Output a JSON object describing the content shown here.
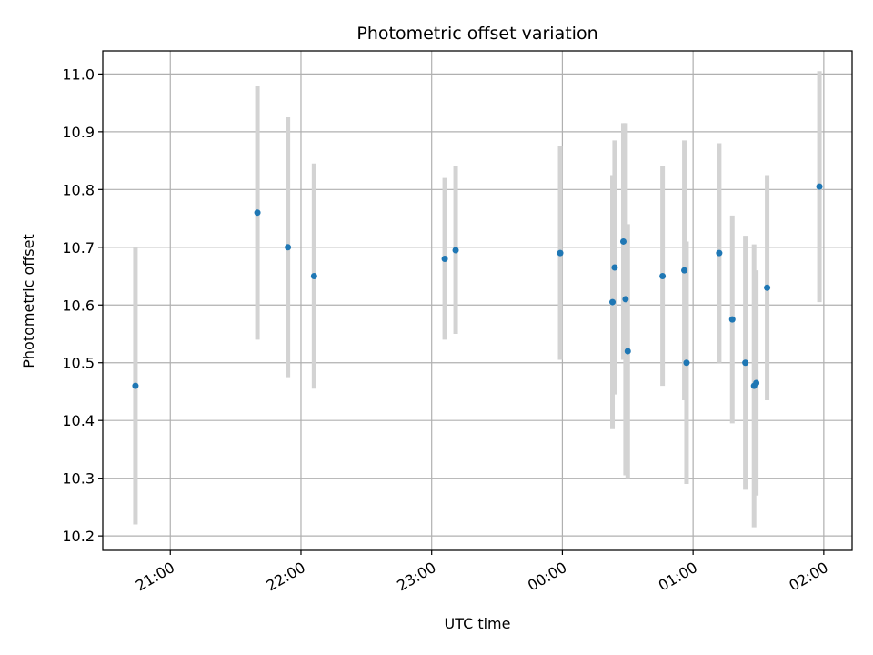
{
  "chart_data": {
    "type": "scatter",
    "title": "Photometric offset variation",
    "xlabel": "UTC time",
    "ylabel": "Photometric offset",
    "x_unit": "hours of UTC night",
    "xlim": [
      "20:29",
      "02:13"
    ],
    "ylim": [
      10.175,
      11.04
    ],
    "grid": true,
    "x_ticks": [
      {
        "t": "21:00",
        "label": "21:00"
      },
      {
        "t": "22:00",
        "label": "22:00"
      },
      {
        "t": "23:00",
        "label": "23:00"
      },
      {
        "t": "00:00",
        "label": "00:00"
      },
      {
        "t": "01:00",
        "label": "01:00"
      },
      {
        "t": "02:00",
        "label": "02:00"
      }
    ],
    "y_ticks": [
      10.2,
      10.3,
      10.4,
      10.5,
      10.6,
      10.7,
      10.8,
      10.9,
      11.0
    ],
    "y_tick_labels": [
      "10.2",
      "10.3",
      "10.4",
      "10.5",
      "10.6",
      "10.7",
      "10.8",
      "10.9",
      "11.0"
    ],
    "marker_color": "#1f77b4",
    "error_color": "#d3d3d3",
    "series": [
      {
        "points": [
          {
            "t": "20:44",
            "y": 10.46,
            "err": 0.24
          },
          {
            "t": "21:40",
            "y": 10.76,
            "err": 0.22
          },
          {
            "t": "21:54",
            "y": 10.7,
            "err": 0.225
          },
          {
            "t": "22:06",
            "y": 10.65,
            "err": 0.195
          },
          {
            "t": "23:06",
            "y": 10.68,
            "err": 0.14
          },
          {
            "t": "23:11",
            "y": 10.695,
            "err": 0.145
          },
          {
            "t": "23:59",
            "y": 10.69,
            "err": 0.185
          },
          {
            "t": "00:23",
            "y": 10.605,
            "err": 0.22
          },
          {
            "t": "00:24",
            "y": 10.665,
            "err": 0.22
          },
          {
            "t": "00:28",
            "y": 10.71,
            "err": 0.205
          },
          {
            "t": "00:29",
            "y": 10.61,
            "err": 0.305
          },
          {
            "t": "00:30",
            "y": 10.52,
            "err": 0.22
          },
          {
            "t": "00:46",
            "y": 10.65,
            "err": 0.19
          },
          {
            "t": "00:56",
            "y": 10.66,
            "err": 0.225
          },
          {
            "t": "00:57",
            "y": 10.5,
            "err": 0.21
          },
          {
            "t": "01:12",
            "y": 10.69,
            "err": 0.19
          },
          {
            "t": "01:18",
            "y": 10.575,
            "err": 0.18
          },
          {
            "t": "01:24",
            "y": 10.5,
            "err": 0.22
          },
          {
            "t": "01:28",
            "y": 10.46,
            "err": 0.245
          },
          {
            "t": "01:29",
            "y": 10.465,
            "err": 0.195
          },
          {
            "t": "01:34",
            "y": 10.63,
            "err": 0.195
          },
          {
            "t": "01:58",
            "y": 10.805,
            "err": 0.2
          }
        ]
      }
    ]
  }
}
